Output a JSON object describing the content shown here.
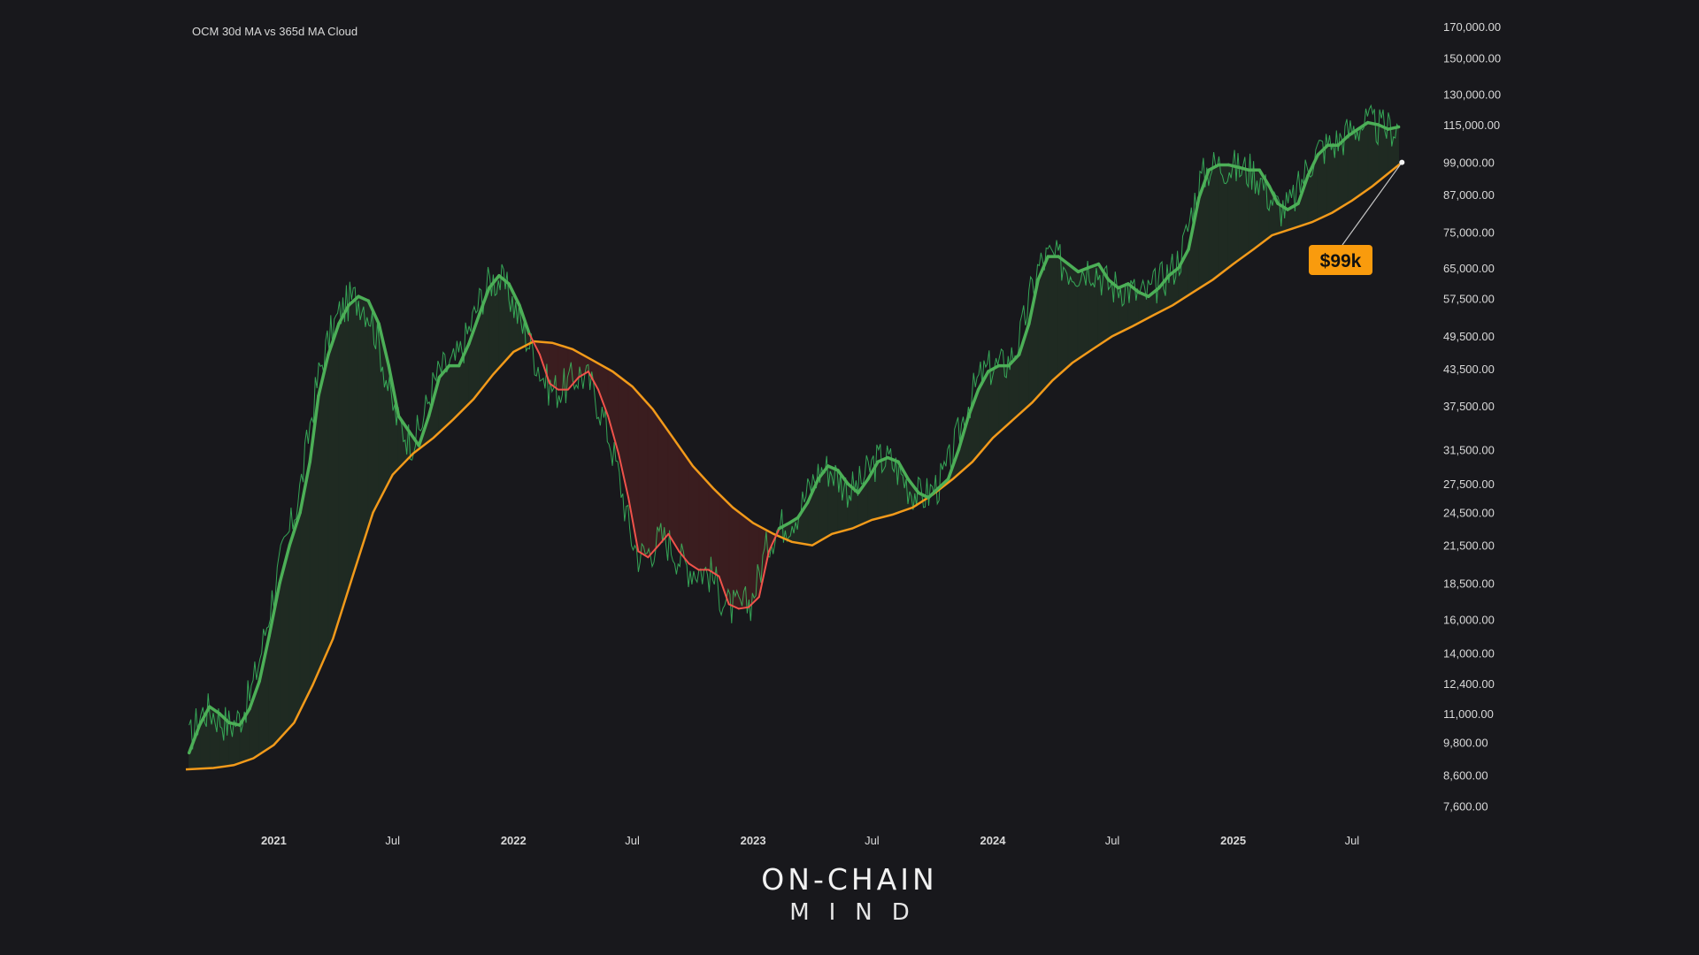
{
  "chart_data": {
    "type": "line",
    "title": "OCM 30d MA vs 365d MA Cloud",
    "y_scale": "log",
    "ylim": [
      7000,
      175000
    ],
    "xlim": [
      "2020-08-20",
      "2025-09-20"
    ],
    "x_ticks": [
      {
        "date": "2021-01-01",
        "label": "2021",
        "major": true
      },
      {
        "date": "2021-07-01",
        "label": "Jul",
        "major": false
      },
      {
        "date": "2022-01-01",
        "label": "2022",
        "major": true
      },
      {
        "date": "2022-07-01",
        "label": "Jul",
        "major": false
      },
      {
        "date": "2023-01-01",
        "label": "2023",
        "major": true
      },
      {
        "date": "2023-07-01",
        "label": "Jul",
        "major": false
      },
      {
        "date": "2024-01-01",
        "label": "2024",
        "major": true
      },
      {
        "date": "2024-07-01",
        "label": "Jul",
        "major": false
      },
      {
        "date": "2025-01-01",
        "label": "2025",
        "major": true
      },
      {
        "date": "2025-07-01",
        "label": "Jul",
        "major": false
      }
    ],
    "y_ticks": [
      {
        "value": 170000,
        "label": "170,000.00"
      },
      {
        "value": 150000,
        "label": "150,000.00"
      },
      {
        "value": 130000,
        "label": "130,000.00"
      },
      {
        "value": 115000,
        "label": "115,000.00"
      },
      {
        "value": 99000,
        "label": "99,000.00"
      },
      {
        "value": 87000,
        "label": "87,000.00"
      },
      {
        "value": 75000,
        "label": "75,000.00"
      },
      {
        "value": 65000,
        "label": "65,000.00"
      },
      {
        "value": 57500,
        "label": "57,500.00"
      },
      {
        "value": 49500,
        "label": "49,500.00"
      },
      {
        "value": 43500,
        "label": "43,500.00"
      },
      {
        "value": 37500,
        "label": "37,500.00"
      },
      {
        "value": 31500,
        "label": "31,500.00"
      },
      {
        "value": 27500,
        "label": "27,500.00"
      },
      {
        "value": 24500,
        "label": "24,500.00"
      },
      {
        "value": 21500,
        "label": "21,500.00"
      },
      {
        "value": 18500,
        "label": "18,500.00"
      },
      {
        "value": 16000,
        "label": "16,000.00"
      },
      {
        "value": 14000,
        "label": "14,000.00"
      },
      {
        "value": 12400,
        "label": "12,400.00"
      },
      {
        "value": 11000,
        "label": "11,000.00"
      },
      {
        "value": 9800,
        "label": "9,800.00"
      },
      {
        "value": 8600,
        "label": "8,600.00"
      },
      {
        "value": 7600,
        "label": "7,600.00"
      }
    ],
    "grid": false,
    "colors": {
      "background": "#18181c",
      "ma30_bull": "#4caf57",
      "ma30_bear": "#f0524a",
      "ma365": "#f29a1a",
      "ma365_bear_segment": "#f26a2a",
      "price": "#3fd36a",
      "cloud_bull": "#1f2a22",
      "cloud_bear": "#3a1d1f",
      "callout_bg": "#f99b0d"
    },
    "series": [
      {
        "key": "ma30",
        "x": [
          "2020-08-25",
          "2020-09-10",
          "2020-09-25",
          "2020-10-10",
          "2020-10-25",
          "2020-11-10",
          "2020-11-25",
          "2020-12-10",
          "2020-12-25",
          "2021-01-10",
          "2021-01-25",
          "2021-02-10",
          "2021-02-25",
          "2021-03-10",
          "2021-03-25",
          "2021-04-10",
          "2021-04-25",
          "2021-05-10",
          "2021-05-25",
          "2021-06-10",
          "2021-06-25",
          "2021-07-10",
          "2021-07-25",
          "2021-08-10",
          "2021-08-25",
          "2021-09-10",
          "2021-09-25",
          "2021-10-10",
          "2021-10-25",
          "2021-11-10",
          "2021-11-25",
          "2021-12-10",
          "2021-12-25",
          "2022-01-10",
          "2022-01-25",
          "2022-02-10",
          "2022-02-25",
          "2022-03-10",
          "2022-03-25",
          "2022-04-10",
          "2022-04-25",
          "2022-05-10",
          "2022-05-25",
          "2022-06-10",
          "2022-06-25",
          "2022-07-10",
          "2022-07-25",
          "2022-08-10",
          "2022-08-25",
          "2022-09-10",
          "2022-09-25",
          "2022-10-10",
          "2022-10-25",
          "2022-11-10",
          "2022-11-25",
          "2022-12-10",
          "2022-12-25",
          "2023-01-10",
          "2023-01-25",
          "2023-02-10",
          "2023-02-25",
          "2023-03-10",
          "2023-03-25",
          "2023-04-10",
          "2023-04-25",
          "2023-05-10",
          "2023-05-25",
          "2023-06-10",
          "2023-06-25",
          "2023-07-10",
          "2023-07-25",
          "2023-08-10",
          "2023-08-25",
          "2023-09-10",
          "2023-09-25",
          "2023-10-10",
          "2023-10-25",
          "2023-11-10",
          "2023-11-25",
          "2023-12-10",
          "2023-12-25",
          "2024-01-10",
          "2024-01-25",
          "2024-02-10",
          "2024-02-25",
          "2024-03-10",
          "2024-03-25",
          "2024-04-10",
          "2024-04-25",
          "2024-05-10",
          "2024-05-25",
          "2024-06-10",
          "2024-06-25",
          "2024-07-10",
          "2024-07-25",
          "2024-08-10",
          "2024-08-25",
          "2024-09-10",
          "2024-09-25",
          "2024-10-10",
          "2024-10-25",
          "2024-11-10",
          "2024-11-25",
          "2024-12-10",
          "2024-12-25",
          "2025-01-10",
          "2025-01-25",
          "2025-02-10",
          "2025-02-25",
          "2025-03-10",
          "2025-03-25",
          "2025-04-10",
          "2025-04-25",
          "2025-05-10",
          "2025-05-25",
          "2025-06-10",
          "2025-06-25",
          "2025-07-10",
          "2025-07-25",
          "2025-08-10",
          "2025-08-25",
          "2025-09-10"
        ],
        "values": [
          9400,
          10500,
          11300,
          11000,
          10600,
          10500,
          11200,
          12500,
          15000,
          18500,
          21500,
          24500,
          30000,
          39000,
          46000,
          52000,
          56000,
          58000,
          57000,
          52000,
          44000,
          36000,
          34000,
          32000,
          36000,
          42000,
          44000,
          44000,
          48000,
          54000,
          60000,
          63000,
          61000,
          56000,
          50000,
          46000,
          41000,
          40000,
          40000,
          42000,
          43000,
          40000,
          36000,
          31000,
          26000,
          21000,
          20500,
          21500,
          22500,
          21000,
          20000,
          19500,
          19500,
          19000,
          17000,
          16700,
          16800,
          17500,
          21000,
          23000,
          23500,
          24000,
          25500,
          28000,
          29500,
          29000,
          27500,
          26500,
          28000,
          30000,
          30500,
          30000,
          28000,
          26500,
          26000,
          27000,
          28000,
          31500,
          36000,
          40000,
          43000,
          44000,
          44000,
          46000,
          52000,
          62000,
          68000,
          68000,
          66000,
          64000,
          65000,
          66000,
          62000,
          60000,
          61000,
          59000,
          58000,
          60000,
          63000,
          65000,
          70000,
          86000,
          96000,
          98000,
          98000,
          97000,
          96000,
          96000,
          90000,
          84000,
          82000,
          84000,
          94000,
          102000,
          106000,
          106000,
          110000,
          113000,
          116000,
          115000,
          113000,
          114000
        ],
        "name": ""
      },
      {
        "key": "ma365",
        "x": [
          "2020-08-20",
          "2020-10-01",
          "2020-11-01",
          "2020-12-01",
          "2021-01-01",
          "2021-02-01",
          "2021-03-01",
          "2021-04-01",
          "2021-05-01",
          "2021-06-01",
          "2021-07-01",
          "2021-08-01",
          "2021-09-01",
          "2021-10-01",
          "2021-11-01",
          "2021-12-01",
          "2022-01-01",
          "2022-02-01",
          "2022-03-01",
          "2022-04-01",
          "2022-05-01",
          "2022-06-01",
          "2022-07-01",
          "2022-08-01",
          "2022-09-01",
          "2022-10-01",
          "2022-11-01",
          "2022-12-01",
          "2023-01-01",
          "2023-02-01",
          "2023-03-01",
          "2023-04-01",
          "2023-05-01",
          "2023-06-01",
          "2023-07-01",
          "2023-08-01",
          "2023-09-01",
          "2023-10-01",
          "2023-11-01",
          "2023-12-01",
          "2024-01-01",
          "2024-02-01",
          "2024-03-01",
          "2024-04-01",
          "2024-05-01",
          "2024-06-01",
          "2024-07-01",
          "2024-08-01",
          "2024-09-01",
          "2024-10-01",
          "2024-11-01",
          "2024-12-01",
          "2025-01-01",
          "2025-02-01",
          "2025-03-01",
          "2025-04-01",
          "2025-05-01",
          "2025-06-01",
          "2025-07-01",
          "2025-08-01",
          "2025-09-15"
        ],
        "values": [
          8800,
          8850,
          8950,
          9200,
          9700,
          10600,
          12300,
          14800,
          19000,
          24500,
          28500,
          31000,
          33000,
          35500,
          38500,
          42500,
          46500,
          48500,
          48200,
          47000,
          45000,
          43000,
          40500,
          37000,
          33000,
          29500,
          27000,
          25000,
          23500,
          22500,
          21800,
          21500,
          22500,
          23000,
          23800,
          24300,
          25000,
          26300,
          28000,
          30000,
          33000,
          35500,
          38000,
          41500,
          44500,
          47000,
          49500,
          51500,
          53800,
          56000,
          59000,
          62000,
          66000,
          70000,
          74000,
          76000,
          78000,
          81000,
          85000,
          90000,
          99000
        ],
        "name": ""
      }
    ],
    "annotations": [
      {
        "type": "callout",
        "text": "$99k",
        "date": "2025-09-15",
        "value": 99000
      }
    ]
  },
  "branding": {
    "line1": "ON-CHAIN",
    "line2": "MIND"
  }
}
